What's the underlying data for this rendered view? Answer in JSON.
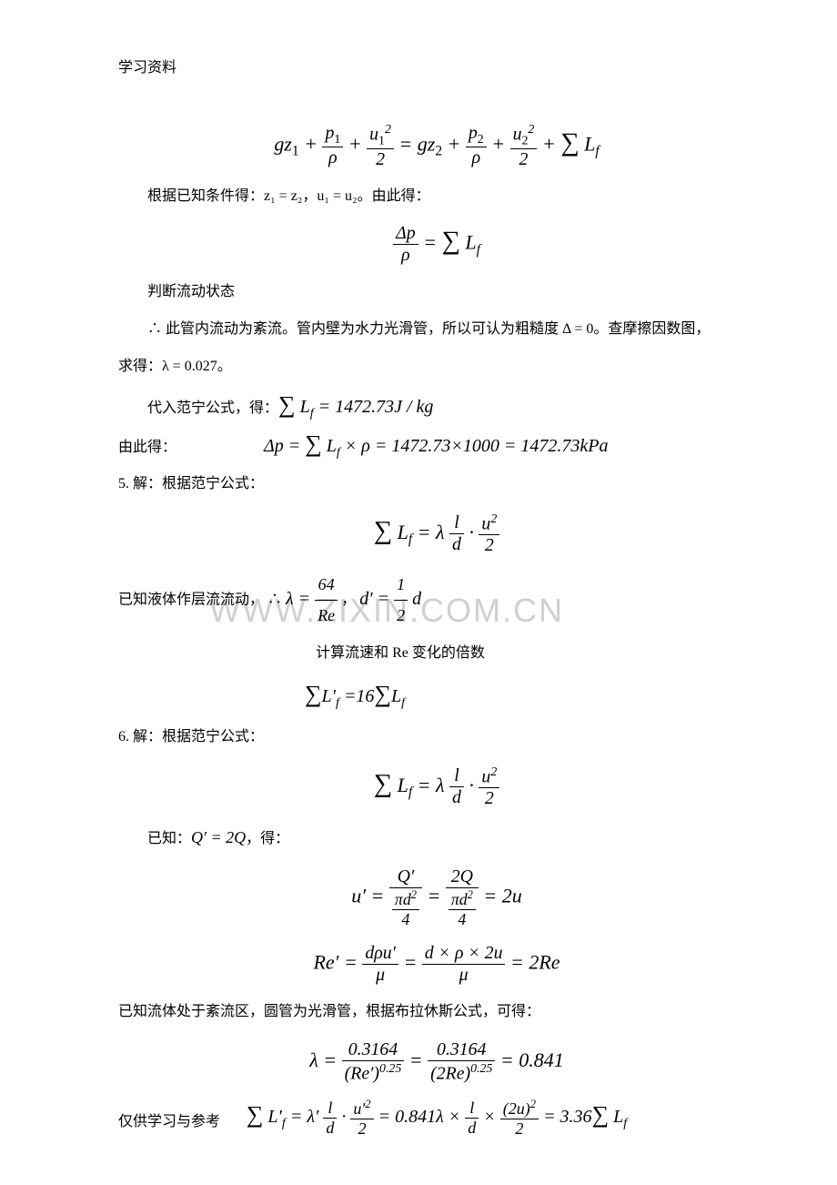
{
  "header": "学习资料",
  "footer": "仅供学习与参考",
  "watermark": "WWW.ZIXIN.COM.CN",
  "eq1_parts": {
    "gz1": "g",
    "z": "z",
    "p": "p",
    "rho": "ρ",
    "u": "u",
    "eq": "=",
    "plus": "+",
    "sum": "∑",
    "Lf": "L",
    "f": "f"
  },
  "para1": "根据已知条件得：z₁ = z₂，u₁ = u₂。由此得：",
  "eq2_delta": "Δp",
  "eq2_rho": "ρ",
  "eq2_sum": "∑",
  "eq2_L": "L",
  "eq2_f": "f",
  "para2": "判断流动状态",
  "para3_pre": "∴ 此管内流动为紊流。管内壁为水力光滑管，所以可认为粗糙度 Δ = 0。查摩擦因数图，",
  "para3_post": "求得：λ = 0.027。",
  "para4_label": "代入范宁公式，得：",
  "eq3": "∑",
  "eq3_L": "L",
  "eq3_f": "f",
  "eq3_val": " = 1472.73J / kg",
  "para5_label": "由此得：",
  "eq4_dp": "Δp = ",
  "eq4_sum": "∑",
  "eq4_L": "L",
  "eq4_f": "f",
  "eq4_rest": " × ρ = 1472.73×1000 = 1472.73kPa",
  "para6": "5. 解：根据范宁公式：",
  "eq5_sum": "∑",
  "eq5_L": "L",
  "eq5_f": "f",
  "eq5_lambda": " = λ",
  "eq5_l": "l",
  "eq5_d": "d",
  "eq5_dot": " · ",
  "eq5_u": "u",
  "eq5_2": "2",
  "para7_pre": "已知液体作层流流动， ∴ ",
  "para7_lambda": "λ = ",
  "para7_64": "64",
  "para7_Re": "Re",
  "para7_comma": "，",
  "para7_dprime": "d′ = ",
  "para7_1": "1",
  "para7_2": "2",
  "para7_d": " d",
  "para8": "计算流速和 Re 变化的倍数",
  "eq6_sum1": "∑",
  "eq6_L1": "L",
  "eq6_fp": "f",
  "eq6_prime": "′",
  "eq6_16": " =16",
  "eq6_sum2": "∑",
  "eq6_L2": "L",
  "eq6_f2": "f",
  "para9": "6. 解：根据范宁公式：",
  "para10_pre": "已知：",
  "para10_Q": "Q′ = 2Q",
  "para10_post": "，得：",
  "eq8_uprime": "u′ = ",
  "eq8_Qprime": "Q′",
  "eq8_pid2_4a": "πd²",
  "eq8_4a": "4",
  "eq8_eq": " = ",
  "eq8_2Q": "2Q",
  "eq8_pid2_4b": "πd²",
  "eq8_4b": "4",
  "eq8_2u": " = 2u",
  "eq9_Re": "Re′ = ",
  "eq9_num1": "dρu′",
  "eq9_mu1": "μ",
  "eq9_num2": "d × ρ × 2u",
  "eq9_mu2": "μ",
  "eq9_2Re": " = 2Re",
  "para11": "已知流体处于紊流区，圆管为光滑管，根据布拉休斯公式，可得：",
  "eq10_lambda": "λ = ",
  "eq10_n1": "0.3164",
  "eq10_d1a": "(Re′)",
  "eq10_d1b": "0.25",
  "eq10_n2": "0.3164",
  "eq10_d2a": "(2Re)",
  "eq10_d2b": "0.25",
  "eq10_res": " = 0.841",
  "eq11_sum": "∑",
  "eq11_L": "L",
  "eq11_fp": "f",
  "eq11_prime": "′",
  "eq11_lamp": " = λ′",
  "eq11_l": "l",
  "eq11_d": "d",
  "eq11_dot": " · ",
  "eq11_up2": "u′²",
  "eq11_2a": "2",
  "eq11_mid": " = 0.841λ × ",
  "eq11_l2": "l",
  "eq11_d2": "d",
  "eq11_x": " × ",
  "eq11_2u2": "(2u)²",
  "eq11_2b": "2",
  "eq11_res": " = 3.36",
  "eq11_sum2": "∑",
  "eq11_L2": "L",
  "eq11_f2": "f"
}
